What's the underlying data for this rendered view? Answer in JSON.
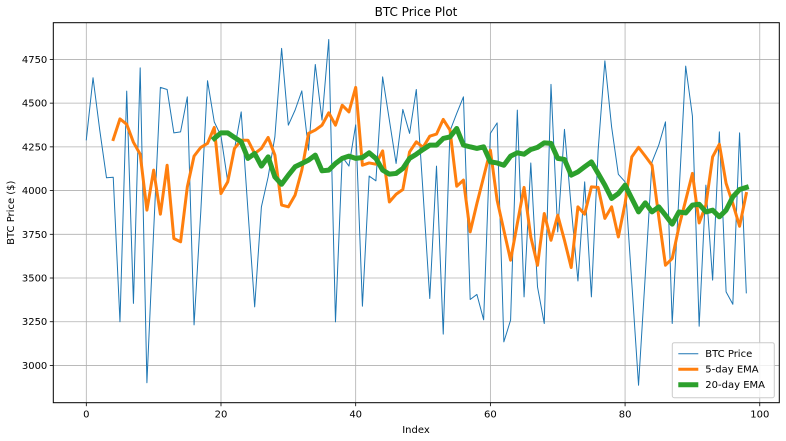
{
  "chart_data": {
    "type": "line",
    "title": "BTC Price Plot",
    "xlabel": "Index",
    "ylabel": "BTC Price ($)",
    "xlim": [
      -4.9,
      102.9
    ],
    "ylim": [
      2787,
      4960
    ],
    "xticks": [
      0,
      20,
      40,
      60,
      80,
      100
    ],
    "xtick_labels": [
      "0",
      "20",
      "40",
      "60",
      "80",
      "100"
    ],
    "yticks": [
      3000,
      3250,
      3500,
      3750,
      4000,
      4250,
      4500,
      4750
    ],
    "ytick_labels": [
      "3000",
      "3250",
      "3500",
      "3750",
      "4000",
      "4250",
      "4500",
      "4750"
    ],
    "grid": true,
    "legend_position": "lower right",
    "series": [
      {
        "name": "BTC Price",
        "color": "#1f77b4",
        "linewidth": 1,
        "x_start": 0,
        "values": [
          4290,
          4645,
          4345,
          4073,
          4076,
          3250,
          4569,
          3355,
          4702,
          2901,
          3770,
          4590,
          4578,
          4330,
          4336,
          4536,
          3232,
          3880,
          4628,
          4393,
          4312,
          4052,
          4236,
          4450,
          3888,
          3335,
          3907,
          4078,
          4307,
          4813,
          4374,
          4460,
          4570,
          4231,
          4721,
          4403,
          4864,
          3249,
          4193,
          4140,
          4376,
          3339,
          4083,
          4056,
          4650,
          4403,
          4155,
          4464,
          4327,
          4578,
          3990,
          3383,
          4140,
          3179,
          4341,
          4441,
          4536,
          3377,
          3406,
          3261,
          4327,
          4387,
          3135,
          3259,
          4460,
          3392,
          4158,
          3449,
          3240,
          4607,
          3764,
          4350,
          3905,
          3483,
          4050,
          3392,
          4231,
          4742,
          4364,
          4093,
          4050,
          3470,
          2887,
          3515,
          4164,
          4260,
          4393,
          3240,
          3976,
          4712,
          4426,
          3224,
          4031,
          3488,
          4336,
          3421,
          3350,
          4330,
          3415
        ]
      },
      {
        "name": "5-day EMA",
        "color": "#ff7f0e",
        "linewidth": 3,
        "x_start": 4,
        "values": [
          4292,
          4410,
          4379,
          4276,
          4208,
          3888,
          4117,
          3865,
          4145,
          3726,
          3707,
          4021,
          4197,
          4247,
          4270,
          4361,
          3983,
          4050,
          4241,
          4288,
          4288,
          4212,
          4241,
          4304,
          4203,
          3917,
          3907,
          3974,
          4117,
          4327,
          4346,
          4374,
          4445,
          4374,
          4488,
          4450,
          4590,
          4145,
          4158,
          4151,
          4227,
          3935,
          3979,
          4006,
          4221,
          4279,
          4247,
          4311,
          4323,
          4407,
          4346,
          4025,
          4060,
          3764,
          3926,
          4078,
          4231,
          3945,
          3773,
          3602,
          3812,
          4018,
          3735,
          3573,
          3869,
          3716,
          3859,
          3716,
          3560,
          3907,
          3865,
          4021,
          4018,
          3841,
          3907,
          3735,
          3926,
          4193,
          4247,
          4197,
          4145,
          3850,
          3573,
          3612,
          3793,
          3945,
          4098,
          3815,
          3917,
          4193,
          4265,
          4041,
          3926,
          3796,
          3983
        ]
      },
      {
        "name": "20-day EMA",
        "color": "#2ca02c",
        "linewidth": 5,
        "x_start": 19,
        "values": [
          4298,
          4330,
          4330,
          4304,
          4279,
          4184,
          4212,
          4140,
          4193,
          4078,
          4036,
          4088,
          4136,
          4155,
          4174,
          4203,
          4113,
          4117,
          4155,
          4184,
          4197,
          4184,
          4189,
          4216,
          4184,
          4117,
          4094,
          4098,
          4126,
          4184,
          4208,
          4235,
          4260,
          4260,
          4298,
          4307,
          4355,
          4260,
          4250,
          4241,
          4250,
          4164,
          4158,
          4145,
          4197,
          4216,
          4208,
          4235,
          4247,
          4273,
          4270,
          4184,
          4178,
          4088,
          4107,
          4136,
          4164,
          4098,
          4031,
          3955,
          3983,
          4031,
          3955,
          3878,
          3930,
          3878,
          3907,
          3859,
          3808,
          3878,
          3872,
          3917,
          3922,
          3878,
          3888,
          3850,
          3888,
          3964,
          4006,
          4018
        ]
      }
    ]
  },
  "style": {
    "background": "#ffffff",
    "grid_color": "#b0b0b0",
    "axis_color": "#000000",
    "legend_border": "#cccccc"
  }
}
